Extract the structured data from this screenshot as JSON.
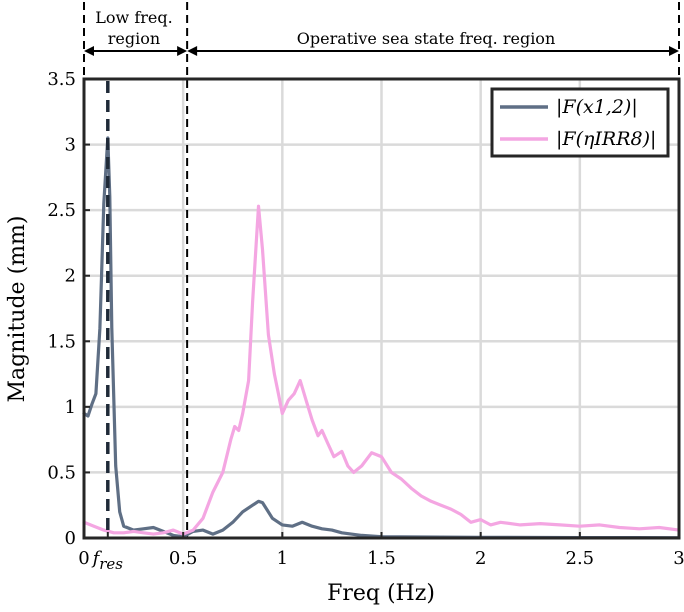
{
  "chart_data": {
    "type": "line",
    "xlabel": "Freq (Hz)",
    "ylabel": "Magnitude (mm)",
    "xlim": [
      0,
      3
    ],
    "ylim": [
      0,
      3.5
    ],
    "grid": true,
    "x_ticks": [
      {
        "value": 0,
        "label": "0"
      },
      {
        "value": 0.12,
        "label": "f_res"
      },
      {
        "value": 0.5,
        "label": "0.5"
      },
      {
        "value": 1,
        "label": "1"
      },
      {
        "value": 1.5,
        "label": "1.5"
      },
      {
        "value": 2,
        "label": "2"
      },
      {
        "value": 2.5,
        "label": "2.5"
      },
      {
        "value": 3,
        "label": "3"
      }
    ],
    "y_ticks": [
      {
        "value": 0,
        "label": "0"
      },
      {
        "value": 0.5,
        "label": "0.5"
      },
      {
        "value": 1,
        "label": "1"
      },
      {
        "value": 1.5,
        "label": "1.5"
      },
      {
        "value": 2,
        "label": "2"
      },
      {
        "value": 2.5,
        "label": "2.5"
      },
      {
        "value": 3,
        "label": "3"
      },
      {
        "value": 3.5,
        "label": "3.5"
      }
    ],
    "f_res": 0.12,
    "region_boundary": 0.52,
    "regions": [
      {
        "label_line1": "Low freq.",
        "label_line2": "region",
        "from": 0,
        "to": 0.52
      },
      {
        "label_line1": "Operative sea state freq. region",
        "label_line2": "",
        "from": 0.52,
        "to": 3
      }
    ],
    "legend_position": "top-right",
    "series": [
      {
        "name": "|F(x1,2)|",
        "color": "#5f6f85",
        "points": [
          [
            0.0,
            0.95
          ],
          [
            0.02,
            0.93
          ],
          [
            0.04,
            1.02
          ],
          [
            0.06,
            1.1
          ],
          [
            0.08,
            1.6
          ],
          [
            0.1,
            2.55
          ],
          [
            0.12,
            3.05
          ],
          [
            0.13,
            2.6
          ],
          [
            0.14,
            1.6
          ],
          [
            0.16,
            0.55
          ],
          [
            0.18,
            0.2
          ],
          [
            0.2,
            0.09
          ],
          [
            0.25,
            0.06
          ],
          [
            0.3,
            0.07
          ],
          [
            0.35,
            0.08
          ],
          [
            0.4,
            0.05
          ],
          [
            0.45,
            0.02
          ],
          [
            0.5,
            0.01
          ],
          [
            0.55,
            0.05
          ],
          [
            0.6,
            0.06
          ],
          [
            0.65,
            0.03
          ],
          [
            0.7,
            0.06
          ],
          [
            0.75,
            0.12
          ],
          [
            0.8,
            0.2
          ],
          [
            0.85,
            0.25
          ],
          [
            0.88,
            0.28
          ],
          [
            0.9,
            0.27
          ],
          [
            0.95,
            0.15
          ],
          [
            1.0,
            0.1
          ],
          [
            1.05,
            0.09
          ],
          [
            1.1,
            0.12
          ],
          [
            1.15,
            0.09
          ],
          [
            1.2,
            0.07
          ],
          [
            1.25,
            0.06
          ],
          [
            1.3,
            0.04
          ],
          [
            1.4,
            0.02
          ],
          [
            1.5,
            0.01
          ],
          [
            2.0,
            0.005
          ],
          [
            2.5,
            0.003
          ],
          [
            3.0,
            0.002
          ]
        ]
      },
      {
        "name": "|F(ηIRR8)|",
        "color": "#f4a6e2",
        "points": [
          [
            0.0,
            0.12
          ],
          [
            0.05,
            0.09
          ],
          [
            0.1,
            0.06
          ],
          [
            0.15,
            0.04
          ],
          [
            0.2,
            0.04
          ],
          [
            0.25,
            0.05
          ],
          [
            0.3,
            0.04
          ],
          [
            0.35,
            0.03
          ],
          [
            0.4,
            0.04
          ],
          [
            0.45,
            0.06
          ],
          [
            0.5,
            0.03
          ],
          [
            0.55,
            0.06
          ],
          [
            0.6,
            0.15
          ],
          [
            0.65,
            0.35
          ],
          [
            0.7,
            0.5
          ],
          [
            0.74,
            0.75
          ],
          [
            0.76,
            0.85
          ],
          [
            0.78,
            0.82
          ],
          [
            0.8,
            0.95
          ],
          [
            0.83,
            1.2
          ],
          [
            0.85,
            1.8
          ],
          [
            0.88,
            2.53
          ],
          [
            0.9,
            2.2
          ],
          [
            0.93,
            1.55
          ],
          [
            0.96,
            1.25
          ],
          [
            0.98,
            1.1
          ],
          [
            1.0,
            0.95
          ],
          [
            1.03,
            1.05
          ],
          [
            1.06,
            1.1
          ],
          [
            1.09,
            1.2
          ],
          [
            1.12,
            1.05
          ],
          [
            1.15,
            0.9
          ],
          [
            1.18,
            0.78
          ],
          [
            1.2,
            0.82
          ],
          [
            1.23,
            0.72
          ],
          [
            1.26,
            0.62
          ],
          [
            1.3,
            0.66
          ],
          [
            1.33,
            0.55
          ],
          [
            1.36,
            0.5
          ],
          [
            1.4,
            0.55
          ],
          [
            1.45,
            0.65
          ],
          [
            1.5,
            0.62
          ],
          [
            1.55,
            0.5
          ],
          [
            1.6,
            0.45
          ],
          [
            1.65,
            0.38
          ],
          [
            1.7,
            0.32
          ],
          [
            1.75,
            0.28
          ],
          [
            1.8,
            0.25
          ],
          [
            1.85,
            0.22
          ],
          [
            1.9,
            0.18
          ],
          [
            1.95,
            0.12
          ],
          [
            2.0,
            0.14
          ],
          [
            2.05,
            0.1
          ],
          [
            2.1,
            0.12
          ],
          [
            2.2,
            0.1
          ],
          [
            2.3,
            0.11
          ],
          [
            2.4,
            0.1
          ],
          [
            2.5,
            0.09
          ],
          [
            2.6,
            0.1
          ],
          [
            2.7,
            0.08
          ],
          [
            2.8,
            0.07
          ],
          [
            2.9,
            0.08
          ],
          [
            3.0,
            0.06
          ]
        ]
      }
    ]
  }
}
